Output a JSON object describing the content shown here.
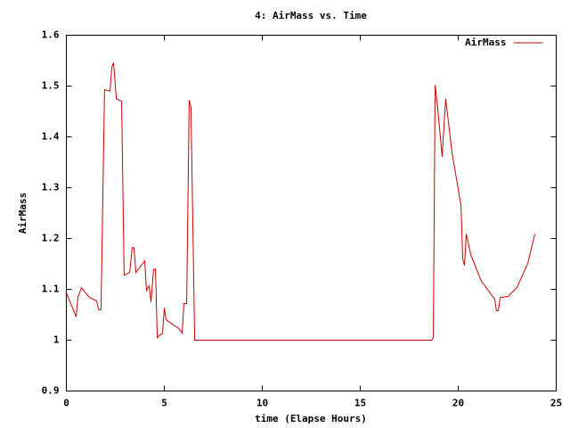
{
  "chart_data": {
    "type": "line",
    "title": "4: AirMass vs. Time",
    "x_label": "time (Elapse Hours)",
    "y_label": "AirMass",
    "x": [
      0,
      0.5,
      0.59,
      0.77,
      1.18,
      1.55,
      1.64,
      1.77,
      1.95,
      2.23,
      2.32,
      2.41,
      2.55,
      2.82,
      2.95,
      3.23,
      3.36,
      3.45,
      3.55,
      4.0,
      4.09,
      4.23,
      4.32,
      4.45,
      4.55,
      4.64,
      4.91,
      5.0,
      5.09,
      5.73,
      5.91,
      6.0,
      6.14,
      6.27,
      6.36,
      6.55,
      18.64,
      18.73,
      18.82,
      18.95,
      19.18,
      19.36,
      19.68,
      20.14,
      20.23,
      20.32,
      20.41,
      20.64,
      21.18,
      21.86,
      21.95,
      22.05,
      22.14,
      22.55,
      23.0,
      23.55,
      23.91
    ],
    "series": [
      {
        "name": "AirMass",
        "color": "#cc0000",
        "values": [
          1.093,
          1.046,
          1.084,
          1.103,
          1.084,
          1.077,
          1.06,
          1.06,
          1.493,
          1.49,
          1.537,
          1.546,
          1.475,
          1.47,
          1.128,
          1.133,
          1.182,
          1.182,
          1.133,
          1.156,
          1.098,
          1.107,
          1.075,
          1.139,
          1.14,
          1.005,
          1.014,
          1.063,
          1.04,
          1.023,
          1.014,
          1.072,
          1.072,
          1.472,
          1.458,
          1.0,
          1.0,
          1.005,
          1.502,
          1.458,
          1.361,
          1.475,
          1.37,
          1.265,
          1.16,
          1.147,
          1.209,
          1.168,
          1.116,
          1.081,
          1.058,
          1.058,
          1.084,
          1.086,
          1.104,
          1.151,
          1.209
        ]
      }
    ],
    "xlim": [
      0,
      25
    ],
    "xticks": [
      0,
      5,
      10,
      15,
      20,
      25
    ],
    "ylim": [
      0.9,
      1.6
    ],
    "yticks": [
      0.9,
      1,
      1.1,
      1.2,
      1.3,
      1.4,
      1.5,
      1.6
    ],
    "legend": "top-right"
  }
}
